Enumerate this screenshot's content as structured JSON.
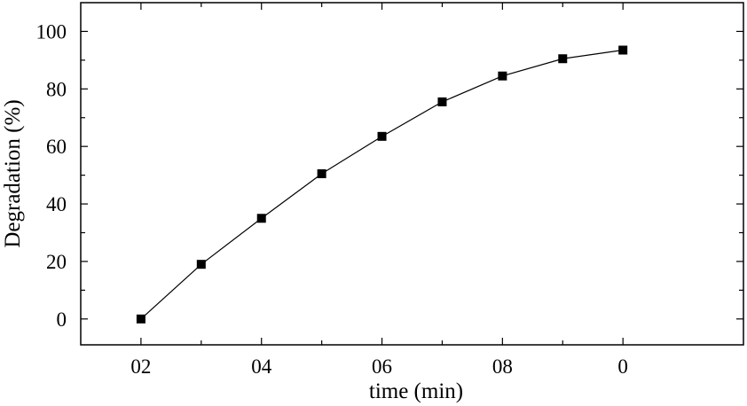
{
  "chart_data": {
    "type": "line",
    "xlabel": "time (min)",
    "ylabel": "Degradation (%)",
    "x_tick_labels": [
      "02",
      "04",
      "06",
      "08",
      "0"
    ],
    "y_tick_labels": [
      "0",
      "20",
      "40",
      "60",
      "80",
      "100"
    ],
    "xlim": [
      10,
      120
    ],
    "ylim": [
      -9,
      110
    ],
    "x_major_ticks": [
      20,
      40,
      60,
      80,
      100
    ],
    "x_minor_ticks": [
      30,
      50,
      70,
      90
    ],
    "y_major_ticks": [
      0,
      20,
      40,
      60,
      80,
      100
    ],
    "y_minor_ticks": [
      10,
      30,
      50,
      70,
      90
    ],
    "grid": false,
    "series": [
      {
        "color": "#000000",
        "marker": "square",
        "x": [
          20,
          30,
          40,
          50,
          60,
          70,
          80,
          90,
          100
        ],
        "y": [
          0,
          19,
          35,
          50.5,
          63.5,
          75.5,
          84.5,
          90.5,
          93.5
        ]
      }
    ]
  }
}
